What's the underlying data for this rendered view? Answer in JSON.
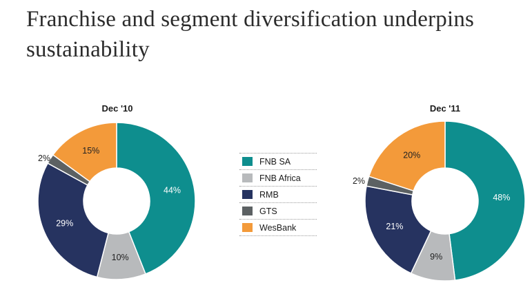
{
  "title": "Franchise and segment diversification underpins sustainability",
  "legend": [
    {
      "label": "FNB SA",
      "color": "#0e8e8e"
    },
    {
      "label": "FNB Africa",
      "color": "#b8babc"
    },
    {
      "label": "RMB",
      "color": "#263360"
    },
    {
      "label": "GTS",
      "color": "#5c6163"
    },
    {
      "label": "WesBank",
      "color": "#f39a3a"
    }
  ],
  "chart_data": [
    {
      "type": "pie",
      "title": "Dec '10",
      "categories": [
        "FNB SA",
        "FNB Africa",
        "RMB",
        "GTS",
        "WesBank"
      ],
      "values": [
        44,
        10,
        29,
        2,
        15
      ],
      "labels": [
        "44%",
        "10%",
        "29%",
        "2%",
        "15%"
      ],
      "donut": true
    },
    {
      "type": "pie",
      "title": "Dec '11",
      "categories": [
        "FNB SA",
        "FNB Africa",
        "RMB",
        "GTS",
        "WesBank"
      ],
      "values": [
        48,
        9,
        21,
        2,
        20
      ],
      "labels": [
        "48%",
        "9%",
        "21%",
        "2%",
        "20%"
      ],
      "donut": true
    }
  ]
}
